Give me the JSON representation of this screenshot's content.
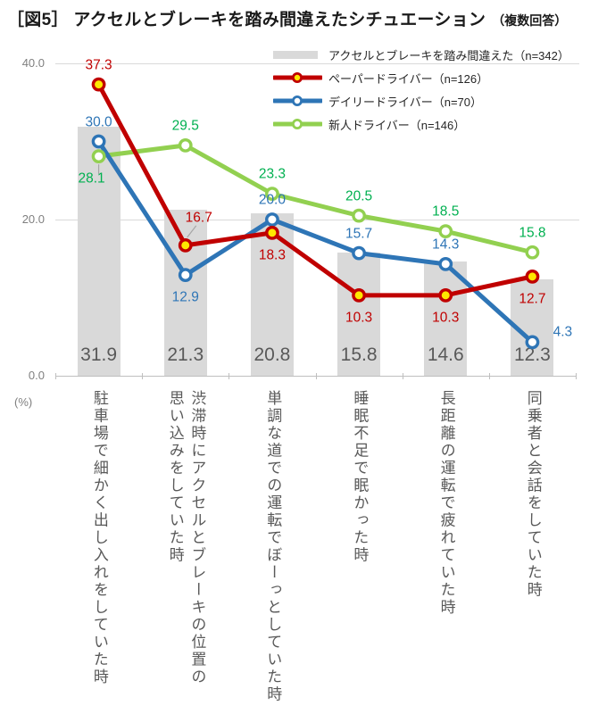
{
  "header": {
    "title": "［図5］ アクセルとブレーキを踏み間違えたシチュエーション",
    "subtitle": "（複数回答）"
  },
  "axis": {
    "unit_label": "(%)",
    "y_ticks": [
      {
        "value": 40,
        "label": "40.0"
      },
      {
        "value": 20,
        "label": "20.0"
      },
      {
        "value": 0,
        "label": "0.0"
      }
    ]
  },
  "colors": {
    "bar": "#d9d9d9",
    "grid": "#d9d9d9",
    "axis_line": "#bfbfbf",
    "leader": "#a6a6a6",
    "red": "#c00000",
    "blue": "#2e75b6",
    "green_line": "#92d050",
    "green_text": "#00b050",
    "marker_yellow": "#ffe800",
    "bar_label": "#595959"
  },
  "chart_data": {
    "type": "bar+line",
    "title": "［図5］ アクセルとブレーキを踏み間違えたシチュエーション（複数回答）",
    "ylabel": "(%)",
    "ylim": [
      0,
      43
    ],
    "gridline_values": [
      20,
      40
    ],
    "grid": "horizontal",
    "legend_position": "top-right",
    "categories": [
      "駐車場で細かく出し入れをしていた時",
      "渋滞時にアクセルとブレーキの位置の\n思い込みをしていた時",
      "単調な道での運転でぼーっとしていた時",
      "睡眠不足で眠かった時",
      "長距離の運転で疲れていた時",
      "同乗者と会話をしていた時"
    ],
    "bar_series": {
      "name": "アクセルとブレーキを踏み間違えた（n=342）",
      "values": [
        31.9,
        21.3,
        20.8,
        15.8,
        14.6,
        12.3
      ],
      "color": "#d9d9d9"
    },
    "line_series": [
      {
        "name": "ペーパードライバー（n=126）",
        "values": [
          37.3,
          16.7,
          18.3,
          10.3,
          10.3,
          12.7
        ],
        "line_color": "#c00000",
        "label_color": "#c00000",
        "marker_fill": "#ffe800",
        "label_pos": [
          "above",
          "above-leader",
          "below",
          "below",
          "below",
          "below"
        ]
      },
      {
        "name": "デイリードライバー（n=70）",
        "values": [
          30.0,
          12.9,
          20.0,
          15.7,
          14.3,
          4.3
        ],
        "line_color": "#2e75b6",
        "label_color": "#2e75b6",
        "marker_fill": "#ffffff",
        "label_pos": [
          "above",
          "below",
          "above",
          "above",
          "above",
          "right"
        ]
      },
      {
        "name": "新人ドライバー（n=146）",
        "values": [
          28.1,
          29.5,
          23.3,
          20.5,
          18.5,
          15.8
        ],
        "line_color": "#92d050",
        "label_color": "#00b050",
        "marker_fill": "#ffffff",
        "label_pos": [
          "below-leader",
          "above",
          "above",
          "above",
          "above",
          "above"
        ]
      }
    ]
  }
}
